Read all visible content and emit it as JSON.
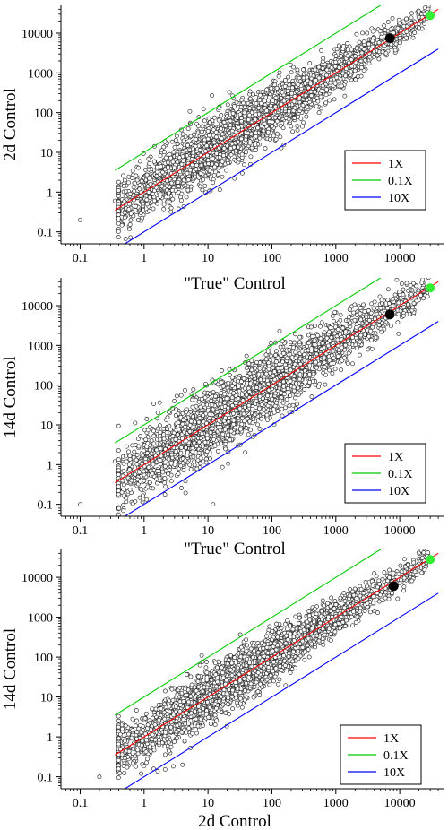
{
  "chart_data": [
    {
      "type": "scatter",
      "xscale": "log",
      "yscale": "log",
      "xlabel": "\"True\" Control",
      "ylabel": "2d Control",
      "xlim": [
        0.05,
        50000
      ],
      "ylim": [
        0.05,
        50000
      ],
      "xticks": [
        0.1,
        1,
        10,
        100,
        1000,
        10000
      ],
      "xtick_labels": [
        "0.1",
        "1",
        "10",
        "100",
        "1000",
        "10000"
      ],
      "yticks": [
        0.1,
        1,
        10,
        100,
        1000,
        10000
      ],
      "ytick_labels": [
        "0.1",
        "1",
        "10",
        "100",
        "1000",
        "10000"
      ],
      "legend_position": "right",
      "series": [
        {
          "name": "1X",
          "type": "line",
          "color": "#ff0000",
          "x": [
            0.35,
            40000
          ],
          "y": [
            0.35,
            40000
          ]
        },
        {
          "name": "0.1X",
          "type": "line",
          "color": "#00cc00",
          "x": [
            0.35,
            40000
          ],
          "y": [
            3.5,
            400000
          ]
        },
        {
          "name": "10X",
          "type": "line",
          "color": "#0000ff",
          "x": [
            0.35,
            40000
          ],
          "y": [
            0.035,
            4000
          ]
        }
      ],
      "highlights": [
        {
          "x": 7000,
          "y": 7500,
          "color": "#000000"
        },
        {
          "x": 30000,
          "y": 28000,
          "color": "#33ee33"
        }
      ],
      "outliers": [
        {
          "x": 0.1,
          "y": 0.2
        },
        {
          "x": 0.35,
          "y": 0.6
        },
        {
          "x": 0.5,
          "y": 2.0
        }
      ],
      "scatter_model": {
        "approx_points": 3500,
        "x_range": [
          0.4,
          30000
        ],
        "relationship": "y ≈ x, spread ≈ ±0.35 log10 at low x narrowing at high x"
      }
    },
    {
      "type": "scatter",
      "xscale": "log",
      "yscale": "log",
      "xlabel": "\"True\" Control",
      "ylabel": "14d Control",
      "xlim": [
        0.05,
        50000
      ],
      "ylim": [
        0.05,
        50000
      ],
      "xticks": [
        0.1,
        1,
        10,
        100,
        1000,
        10000
      ],
      "xtick_labels": [
        "0.1",
        "1",
        "10",
        "100",
        "1000",
        "10000"
      ],
      "yticks": [
        0.1,
        1,
        10,
        100,
        1000,
        10000
      ],
      "ytick_labels": [
        "0.1",
        "1",
        "10",
        "100",
        "1000",
        "10000"
      ],
      "legend_position": "right",
      "series": [
        {
          "name": "1X",
          "type": "line",
          "color": "#ff0000",
          "x": [
            0.35,
            40000
          ],
          "y": [
            0.35,
            40000
          ]
        },
        {
          "name": "0.1X",
          "type": "line",
          "color": "#00cc00",
          "x": [
            0.35,
            40000
          ],
          "y": [
            3.5,
            400000
          ]
        },
        {
          "name": "10X",
          "type": "line",
          "color": "#0000ff",
          "x": [
            0.35,
            40000
          ],
          "y": [
            0.035,
            4000
          ]
        }
      ],
      "highlights": [
        {
          "x": 7000,
          "y": 6000,
          "color": "#000000"
        },
        {
          "x": 30000,
          "y": 28000,
          "color": "#33ee33"
        }
      ],
      "outliers": [
        {
          "x": 0.1,
          "y": 0.1
        },
        {
          "x": 0.35,
          "y": 1.2
        },
        {
          "x": 0.45,
          "y": 0.2
        },
        {
          "x": 12,
          "y": 0.1
        }
      ],
      "scatter_model": {
        "approx_points": 3500,
        "x_range": [
          0.4,
          30000
        ],
        "relationship": "y ≈ x, spread ≈ ±0.42 log10 at low x narrowing at high x"
      }
    },
    {
      "type": "scatter",
      "xscale": "log",
      "yscale": "log",
      "xlabel": "2d Control",
      "ylabel": "14d Control",
      "xlim": [
        0.05,
        50000
      ],
      "ylim": [
        0.05,
        50000
      ],
      "xticks": [
        0.1,
        1,
        10,
        100,
        1000,
        10000
      ],
      "xtick_labels": [
        "0.1",
        "1",
        "10",
        "100",
        "1000",
        "10000"
      ],
      "yticks": [
        0.1,
        1,
        10,
        100,
        1000,
        10000
      ],
      "ytick_labels": [
        "0.1",
        "1",
        "10",
        "100",
        "1000",
        "10000"
      ],
      "legend_position": "right",
      "series": [
        {
          "name": "1X",
          "type": "line",
          "color": "#ff0000",
          "x": [
            0.35,
            40000
          ],
          "y": [
            0.35,
            40000
          ]
        },
        {
          "name": "0.1X",
          "type": "line",
          "color": "#00cc00",
          "x": [
            0.35,
            40000
          ],
          "y": [
            3.5,
            400000
          ]
        },
        {
          "name": "10X",
          "type": "line",
          "color": "#0000ff",
          "x": [
            0.35,
            40000
          ],
          "y": [
            0.035,
            4000
          ]
        }
      ],
      "highlights": [
        {
          "x": 8000,
          "y": 6000,
          "color": "#000000"
        },
        {
          "x": 30000,
          "y": 28000,
          "color": "#33ee33"
        }
      ],
      "outliers": [
        {
          "x": 0.2,
          "y": 0.1
        },
        {
          "x": 0.5,
          "y": 0.3
        },
        {
          "x": 0.9,
          "y": 0.12
        },
        {
          "x": 4,
          "y": 0.2
        }
      ],
      "scatter_model": {
        "approx_points": 3500,
        "x_range": [
          0.4,
          30000
        ],
        "relationship": "y ≈ x, spread ≈ ±0.32 log10 at low x narrowing at high x"
      }
    }
  ]
}
